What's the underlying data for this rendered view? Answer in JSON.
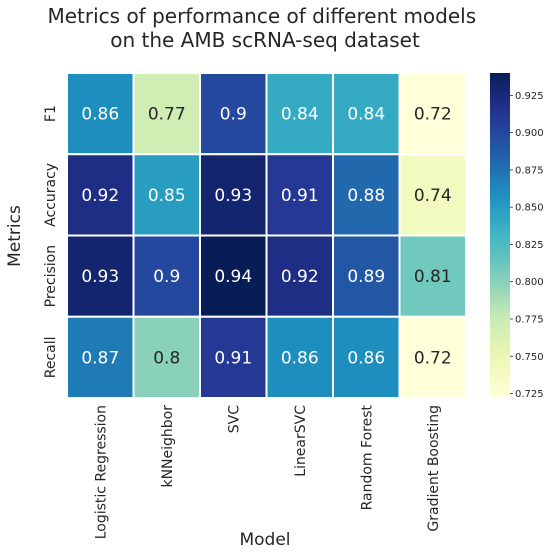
{
  "chart_data": {
    "type": "heatmap",
    "title": [
      "Metrics of performance of different models",
      "on the AMB scRNA-seq dataset"
    ],
    "xlabel": "Model",
    "ylabel": "Metrics",
    "x_categories": [
      "Logistic Regression",
      "kNNeighbor",
      "SVC",
      "LinearSVC",
      "Random Forest",
      "Gradient Boosting"
    ],
    "y_categories": [
      "F1",
      "Accuracy",
      "Precision",
      "Recall"
    ],
    "values": [
      [
        0.86,
        0.77,
        0.9,
        0.84,
        0.84,
        0.72
      ],
      [
        0.92,
        0.85,
        0.93,
        0.91,
        0.88,
        0.74
      ],
      [
        0.93,
        0.9,
        0.94,
        0.92,
        0.89,
        0.81
      ],
      [
        0.87,
        0.8,
        0.91,
        0.86,
        0.86,
        0.72
      ]
    ],
    "cell_labels": [
      [
        "0.86",
        "0.77",
        "0.9",
        "0.84",
        "0.84",
        "0.72"
      ],
      [
        "0.92",
        "0.85",
        "0.93",
        "0.91",
        "0.88",
        "0.74"
      ],
      [
        "0.93",
        "0.9",
        "0.94",
        "0.92",
        "0.89",
        "0.81"
      ],
      [
        "0.87",
        "0.8",
        "0.91",
        "0.86",
        "0.86",
        "0.72"
      ]
    ],
    "colormap": "YlGnBu",
    "colorbar": {
      "vmin": 0.722,
      "vmax": 0.94,
      "ticks": [
        0.725,
        0.75,
        0.775,
        0.8,
        0.825,
        0.85,
        0.875,
        0.9,
        0.925
      ],
      "tick_labels": [
        "0.725",
        "0.750",
        "0.775",
        "0.800",
        "0.825",
        "0.850",
        "0.875",
        "0.900",
        "0.925"
      ]
    }
  }
}
